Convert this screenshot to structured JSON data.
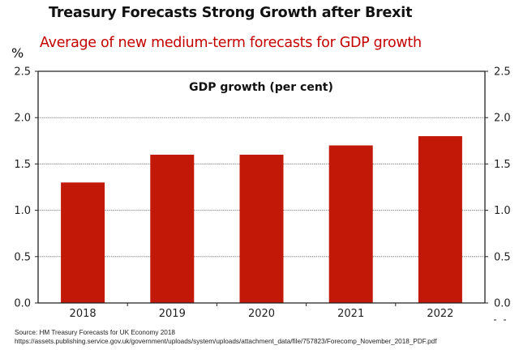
{
  "header": {
    "title": "Treasury Forecasts Strong Growth after Brexit",
    "subtitle": "Average of new medium-term forecasts for GDP growth",
    "unit_label": "%"
  },
  "chart_data": {
    "type": "bar",
    "title": "Treasury Forecasts Strong Growth after Brexit",
    "subtitle": "Average of new medium-term forecasts for GDP growth",
    "inner_label": "GDP growth (per cent)",
    "xlabel": "",
    "ylabel": "%",
    "categories": [
      "2018",
      "2019",
      "2020",
      "2021",
      "2022"
    ],
    "values": [
      1.3,
      1.6,
      1.6,
      1.7,
      1.8
    ],
    "ylim": [
      0,
      2.5
    ],
    "yticks": [
      "0.0",
      "0.5",
      "1.0",
      "1.5",
      "2.0",
      "2.5"
    ],
    "ytick_values": [
      0,
      0.5,
      1.0,
      1.5,
      2.0,
      2.5
    ],
    "grid": true,
    "legend": "none",
    "colors": {
      "bar": "#c21807",
      "subtitle": "#c40000"
    }
  },
  "source": {
    "line1": "Source: HM Treasury Forecasts for UK Economy 2018",
    "line2": "https://assets.publishing.service.gov.uk/government/uploads/system/uploads/attachment_data/file/757823/Forecomp_November_2018_PDF.pdf"
  }
}
